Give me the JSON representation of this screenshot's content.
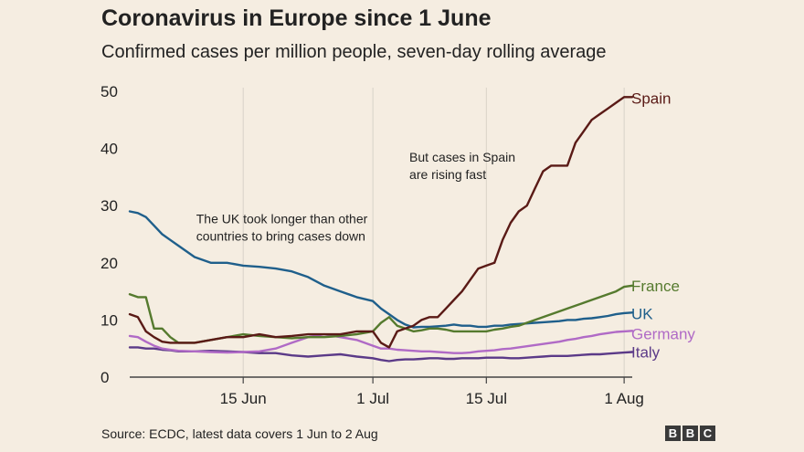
{
  "chart_data": {
    "type": "line",
    "title": "Coronavirus in Europe since 1 June",
    "subtitle": "Confirmed cases per million people, seven-day rolling average",
    "xlabel": "",
    "ylabel": "",
    "ylim": [
      0,
      50
    ],
    "xlim": [
      0,
      62
    ],
    "yticks": [
      0,
      10,
      20,
      30,
      40,
      50
    ],
    "xticks": [
      {
        "day": 14,
        "label": "15 Jun"
      },
      {
        "day": 30,
        "label": "1 Jul"
      },
      {
        "day": 44,
        "label": "15 Jul"
      },
      {
        "day": 61,
        "label": "1 Aug"
      }
    ],
    "grid": "vertical",
    "series": [
      {
        "name": "Spain",
        "color": "#5a1a16",
        "x": [
          0,
          1,
          2,
          3,
          4,
          5,
          6,
          8,
          10,
          12,
          14,
          16,
          18,
          20,
          22,
          24,
          26,
          28,
          30,
          31,
          32,
          33,
          34,
          35,
          36,
          37,
          38,
          39,
          40,
          41,
          42,
          43,
          44,
          45,
          46,
          47,
          48,
          49,
          50,
          51,
          52,
          53,
          54,
          55,
          56,
          57,
          58,
          59,
          60,
          61,
          62
        ],
        "y": [
          11,
          10.5,
          8,
          7,
          6.2,
          6,
          6,
          6,
          6.5,
          7,
          7,
          7.5,
          7,
          7.2,
          7.5,
          7.5,
          7.5,
          8,
          8,
          6,
          5.2,
          8,
          8.5,
          9,
          10,
          10.5,
          10.5,
          12,
          13.5,
          15,
          17,
          19,
          19.5,
          20,
          24,
          27,
          29,
          30,
          33,
          36,
          37,
          37,
          37,
          41,
          43,
          45,
          46,
          47,
          48,
          49,
          49
        ]
      },
      {
        "name": "France",
        "color": "#557a2e",
        "x": [
          0,
          1,
          2,
          3,
          4,
          5,
          6,
          8,
          10,
          12,
          14,
          16,
          18,
          20,
          22,
          24,
          26,
          28,
          30,
          31,
          32,
          33,
          34,
          35,
          36,
          37,
          38,
          39,
          40,
          41,
          42,
          43,
          44,
          45,
          46,
          47,
          48,
          49,
          50,
          51,
          52,
          53,
          54,
          55,
          56,
          57,
          58,
          59,
          60,
          61,
          62
        ],
        "y": [
          14.5,
          14,
          14,
          8.5,
          8.5,
          7,
          6,
          6,
          6.5,
          7,
          7.5,
          7.2,
          7,
          6.8,
          7,
          7,
          7.2,
          7.5,
          8,
          9.5,
          10.5,
          9,
          8.5,
          8,
          8.2,
          8.5,
          8.5,
          8.3,
          8,
          8,
          8,
          8,
          8,
          8.3,
          8.5,
          8.8,
          9,
          9.5,
          10,
          10.5,
          11,
          11.5,
          12,
          12.5,
          13,
          13.5,
          14,
          14.5,
          15,
          15.8,
          16
        ]
      },
      {
        "name": "UK",
        "color": "#1f5f8b",
        "x": [
          0,
          1,
          2,
          3,
          4,
          5,
          6,
          8,
          10,
          12,
          14,
          16,
          18,
          20,
          22,
          24,
          26,
          28,
          30,
          31,
          32,
          33,
          34,
          35,
          36,
          37,
          38,
          39,
          40,
          41,
          42,
          43,
          44,
          45,
          46,
          47,
          48,
          49,
          50,
          51,
          52,
          53,
          54,
          55,
          56,
          57,
          58,
          59,
          60,
          61,
          62
        ],
        "y": [
          29,
          28.7,
          28,
          26.5,
          25,
          24,
          23,
          21,
          20,
          20,
          19.5,
          19.3,
          19,
          18.5,
          17.5,
          16,
          15,
          14,
          13.3,
          12,
          11,
          10,
          9.2,
          8.7,
          8.8,
          8.8,
          8.9,
          9,
          9.2,
          9,
          9,
          8.8,
          8.8,
          9,
          9,
          9.2,
          9.3,
          9.4,
          9.5,
          9.6,
          9.7,
          9.8,
          10,
          10,
          10.2,
          10.3,
          10.5,
          10.7,
          11,
          11.2,
          11.3
        ]
      },
      {
        "name": "Germany",
        "color": "#b06ac6",
        "x": [
          0,
          1,
          2,
          3,
          4,
          5,
          6,
          8,
          10,
          12,
          14,
          16,
          18,
          20,
          22,
          24,
          26,
          28,
          30,
          31,
          32,
          33,
          34,
          35,
          36,
          37,
          38,
          39,
          40,
          41,
          42,
          43,
          44,
          45,
          46,
          47,
          48,
          49,
          50,
          51,
          52,
          53,
          54,
          55,
          56,
          57,
          58,
          59,
          60,
          61,
          62
        ],
        "y": [
          7.2,
          7,
          6.2,
          5.5,
          5,
          4.8,
          4.6,
          4.5,
          4.4,
          4.3,
          4.4,
          4.5,
          5,
          6,
          7,
          7.5,
          7,
          6.5,
          5.5,
          5,
          5,
          4.8,
          4.7,
          4.6,
          4.5,
          4.5,
          4.4,
          4.3,
          4.2,
          4.2,
          4.3,
          4.5,
          4.6,
          4.7,
          4.9,
          5,
          5.2,
          5.4,
          5.6,
          5.8,
          6,
          6.2,
          6.5,
          6.7,
          7,
          7.2,
          7.5,
          7.7,
          7.9,
          8,
          8.1
        ]
      },
      {
        "name": "Italy",
        "color": "#5b3a88",
        "x": [
          0,
          1,
          2,
          3,
          4,
          5,
          6,
          8,
          10,
          12,
          14,
          16,
          18,
          20,
          22,
          24,
          26,
          28,
          30,
          31,
          32,
          33,
          34,
          35,
          36,
          37,
          38,
          39,
          40,
          41,
          42,
          43,
          44,
          45,
          46,
          47,
          48,
          49,
          50,
          51,
          52,
          53,
          54,
          55,
          56,
          57,
          58,
          59,
          60,
          61,
          62
        ],
        "y": [
          5.2,
          5.2,
          5,
          5,
          4.8,
          4.7,
          4.5,
          4.5,
          4.6,
          4.5,
          4.4,
          4.2,
          4.2,
          3.8,
          3.6,
          3.8,
          4,
          3.6,
          3.3,
          3.0,
          2.8,
          3.0,
          3.1,
          3.1,
          3.2,
          3.3,
          3.3,
          3.2,
          3.2,
          3.3,
          3.3,
          3.3,
          3.4,
          3.4,
          3.4,
          3.3,
          3.3,
          3.4,
          3.5,
          3.6,
          3.7,
          3.7,
          3.7,
          3.8,
          3.9,
          4.0,
          4.0,
          4.1,
          4.2,
          4.3,
          4.4
        ]
      }
    ],
    "annotations": [
      {
        "text": [
          "The UK took longer than other",
          "countries to bring cases down"
        ],
        "day": 8.2,
        "value": 26.9
      },
      {
        "text": [
          "But cases in Spain",
          "are rising fast"
        ],
        "day": 34.5,
        "value": 37.7
      }
    ]
  },
  "source": "Source: ECDC, latest data covers 1 Jun to 2 Aug",
  "logo": {
    "letters": [
      "B",
      "B",
      "C"
    ]
  }
}
